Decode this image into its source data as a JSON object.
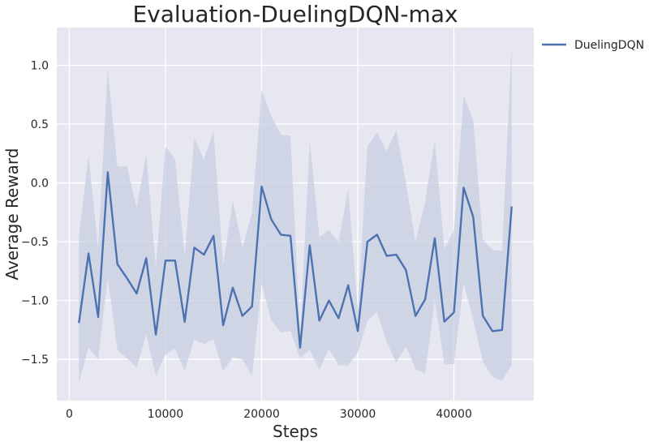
{
  "chart_data": {
    "type": "line",
    "title": "Evaluation-DuelingDQN-max",
    "xlabel": "Steps",
    "ylabel": "Average Reward",
    "xlim": [
      -1300,
      48300
    ],
    "ylim": [
      -1.85,
      1.32
    ],
    "xticks": [
      0,
      10000,
      20000,
      30000,
      40000
    ],
    "xtick_labels": [
      "0",
      "10000",
      "20000",
      "30000",
      "40000"
    ],
    "yticks": [
      -1.5,
      -1.0,
      -0.5,
      0.0,
      0.5,
      1.0
    ],
    "ytick_labels": [
      "−1.5",
      "−1.0",
      "−0.5",
      "0.0",
      "0.5",
      "1.0"
    ],
    "grid": true,
    "legend_position": "outside-top-right",
    "background_color": "#e6e7f0",
    "grid_color": "#ffffff",
    "series": [
      {
        "name": "DuelingDQN",
        "color": "#4c72b0",
        "band_color": "#c8cfe2",
        "x": [
          1000,
          2000,
          3000,
          4000,
          5000,
          6000,
          7000,
          8000,
          9000,
          10000,
          11000,
          12000,
          13000,
          14000,
          15000,
          16000,
          17000,
          18000,
          19000,
          20000,
          21000,
          22000,
          23000,
          24000,
          25000,
          26000,
          27000,
          28000,
          29000,
          30000,
          31000,
          32000,
          33000,
          34000,
          35000,
          36000,
          37000,
          38000,
          39000,
          40000,
          41000,
          42000,
          43000,
          44000,
          45000,
          46000
        ],
        "y": [
          -1.19,
          -0.6,
          -1.14,
          0.09,
          -0.69,
          -0.81,
          -0.94,
          -0.64,
          -1.29,
          -0.66,
          -0.66,
          -1.18,
          -0.55,
          -0.61,
          -0.45,
          -1.21,
          -0.89,
          -1.13,
          -1.05,
          -0.03,
          -0.31,
          -0.44,
          -0.45,
          -1.4,
          -0.53,
          -1.17,
          -1.0,
          -1.15,
          -0.87,
          -1.26,
          -0.5,
          -0.44,
          -0.62,
          -0.61,
          -0.74,
          -1.13,
          -0.99,
          -0.47,
          -1.18,
          -1.1,
          -0.04,
          -0.29,
          -1.13,
          -1.26,
          -1.25,
          -0.2
        ],
        "upper": [
          -0.45,
          0.23,
          -0.55,
          0.97,
          0.14,
          0.14,
          -0.21,
          0.24,
          -0.72,
          0.31,
          0.2,
          -0.62,
          0.38,
          0.2,
          0.44,
          -0.7,
          -0.15,
          -0.55,
          -0.25,
          0.79,
          0.57,
          0.41,
          0.4,
          -1.3,
          0.36,
          -0.46,
          -0.4,
          -0.5,
          -0.05,
          -1.08,
          0.31,
          0.43,
          0.27,
          0.45,
          0.0,
          -0.5,
          -0.16,
          0.36,
          -0.56,
          -0.4,
          0.74,
          0.54,
          -0.48,
          -0.57,
          -0.58,
          1.17
        ],
        "lower": [
          -1.7,
          -1.4,
          -1.5,
          -0.8,
          -1.42,
          -1.49,
          -1.57,
          -1.29,
          -1.64,
          -1.46,
          -1.41,
          -1.6,
          -1.33,
          -1.37,
          -1.33,
          -1.6,
          -1.48,
          -1.5,
          -1.64,
          -0.86,
          -1.17,
          -1.27,
          -1.26,
          -1.49,
          -1.42,
          -1.59,
          -1.41,
          -1.55,
          -1.55,
          -1.44,
          -1.17,
          -1.1,
          -1.35,
          -1.53,
          -1.39,
          -1.58,
          -1.62,
          -1.0,
          -1.54,
          -1.54,
          -0.85,
          -1.16,
          -1.52,
          -1.65,
          -1.68,
          -1.55
        ]
      }
    ]
  }
}
